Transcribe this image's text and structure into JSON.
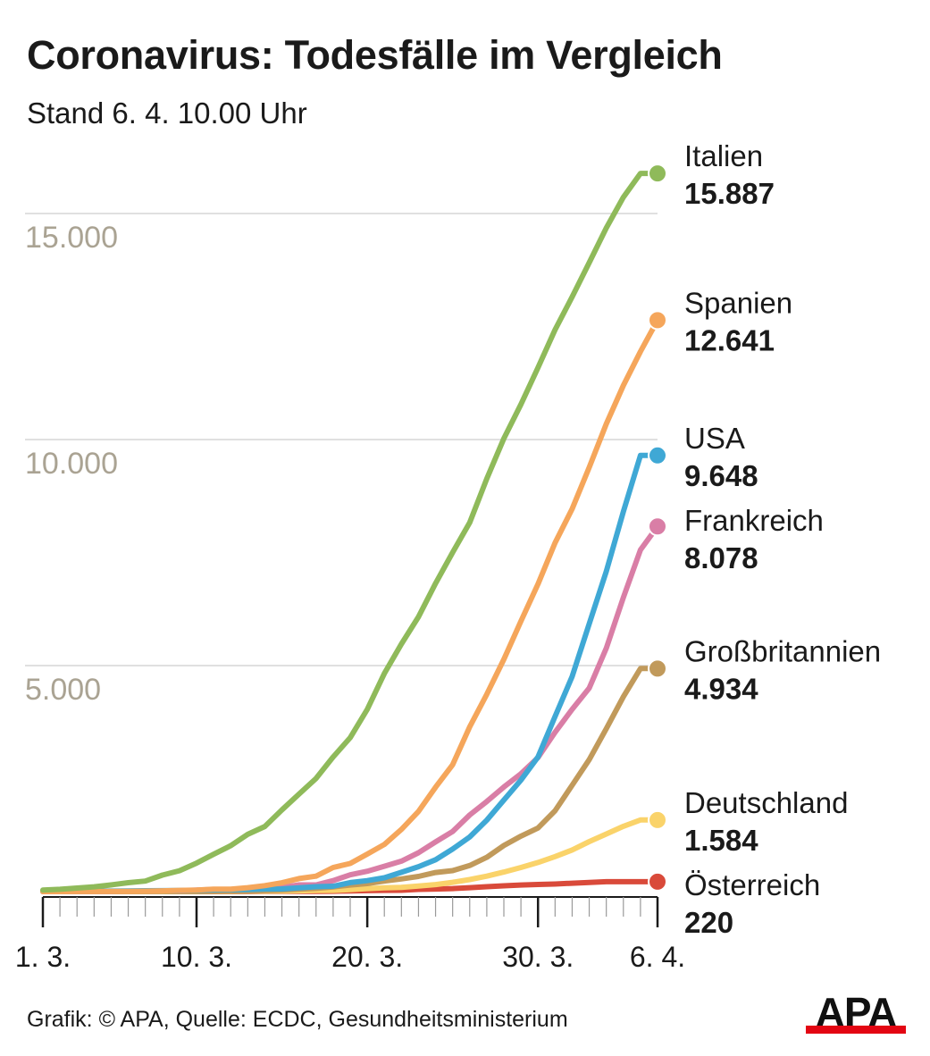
{
  "header": {
    "title": "Coronavirus: Todesfälle im Vergleich",
    "subtitle": "Stand 6. 4. 10.00 Uhr"
  },
  "footer": {
    "source": "Grafik: © APA, Quelle: ECDC, Gesundheitsministerium",
    "logo": "APA"
  },
  "colors": {
    "grid": "#d6d6d6",
    "ytick": "#aaa393",
    "axis": "#1a1a1a",
    "logo_bar": "#e30613"
  },
  "chart_data": {
    "type": "line",
    "title": "Coronavirus: Todesfälle im Vergleich",
    "subtitle": "Stand 6. 4. 10.00 Uhr",
    "ylim": [
      0,
      16000
    ],
    "yticks": [
      5000,
      10000,
      15000
    ],
    "ytick_labels": [
      "5.000",
      "10.000",
      "15.000"
    ],
    "grid": true,
    "x_days": [
      "1.3.",
      "2.3.",
      "3.3.",
      "4.3.",
      "5.3.",
      "6.3.",
      "7.3.",
      "8.3.",
      "9.3.",
      "10.3.",
      "11.3.",
      "12.3.",
      "13.3.",
      "14.3.",
      "15.3.",
      "16.3.",
      "17.3.",
      "18.3.",
      "19.3.",
      "20.3.",
      "21.3.",
      "22.3.",
      "23.3.",
      "24.3.",
      "25.3.",
      "26.3.",
      "27.3.",
      "28.3.",
      "29.3.",
      "30.3.",
      "31.3.",
      "1.4.",
      "2.4.",
      "3.4.",
      "4.4.",
      "5.4.",
      "6.4."
    ],
    "x_major_labels": [
      "1. 3.",
      "10. 3.",
      "20. 3.",
      "30. 3.",
      "6. 4."
    ],
    "x_major_index": [
      0,
      9,
      19,
      29,
      36
    ],
    "legend_placement": "right, at line ends",
    "series": [
      {
        "name": "Italien",
        "value_label": "15.887",
        "color": "#8fba5a",
        "values": [
          34,
          52,
          79,
          107,
          148,
          197,
          233,
          366,
          463,
          631,
          827,
          1016,
          1266,
          1441,
          1809,
          2158,
          2503,
          2978,
          3405,
          4032,
          4825,
          5476,
          6077,
          6820,
          7503,
          8165,
          9134,
          10023,
          10779,
          11591,
          12428,
          13155,
          13915,
          14681,
          15362,
          15887,
          15887
        ]
      },
      {
        "name": "Spanien",
        "value_label": "12.641",
        "color": "#f5a65b",
        "values": [
          0,
          0,
          1,
          2,
          3,
          5,
          10,
          17,
          28,
          35,
          54,
          55,
          86,
          133,
          195,
          289,
          342,
          533,
          623,
          830,
          1043,
          1375,
          1772,
          2311,
          2808,
          3647,
          4365,
          5138,
          5982,
          6803,
          7716,
          8464,
          9387,
          10348,
          11198,
          11947,
          12641
        ]
      },
      {
        "name": "USA",
        "value_label": "9.648",
        "color": "#3fa8d5",
        "values": [
          1,
          6,
          9,
          11,
          12,
          15,
          19,
          22,
          26,
          30,
          38,
          41,
          48,
          57,
          60,
          85,
          108,
          118,
          200,
          244,
          307,
          427,
          552,
          706,
          942,
          1209,
          1581,
          2026,
          2467,
          2978,
          3873,
          4757,
          5926,
          7087,
          8407,
          9648,
          9648
        ]
      },
      {
        "name": "Frankreich",
        "value_label": "8.078",
        "color": "#d97ea6",
        "values": [
          2,
          2,
          3,
          4,
          6,
          9,
          11,
          19,
          19,
          33,
          48,
          48,
          79,
          91,
          91,
          149,
          149,
          244,
          372,
          450,
          562,
          674,
          860,
          1100,
          1331,
          1696,
          1995,
          2314,
          2606,
          2964,
          3523,
          4032,
          4503,
          5387,
          6507,
          7560,
          8078
        ]
      },
      {
        "name": "Großbritannien",
        "value_label": "4.934",
        "color": "#c19a5b",
        "values": [
          0,
          0,
          0,
          0,
          1,
          2,
          2,
          3,
          5,
          6,
          8,
          8,
          10,
          21,
          35,
          55,
          71,
          104,
          144,
          177,
          233,
          281,
          335,
          422,
          465,
          578,
          759,
          1019,
          1228,
          1408,
          1789,
          2352,
          2921,
          3605,
          4313,
          4934,
          4934
        ]
      },
      {
        "name": "Deutschland",
        "value_label": "1.584",
        "color": "#fad36a",
        "values": [
          0,
          0,
          0,
          0,
          0,
          0,
          0,
          0,
          2,
          2,
          3,
          3,
          7,
          9,
          11,
          17,
          24,
          28,
          44,
          67,
          84,
          94,
          123,
          157,
          206,
          267,
          342,
          433,
          533,
          645,
          775,
          920,
          1107,
          1275,
          1444,
          1584,
          1584
        ]
      },
      {
        "name": "Österreich",
        "value_label": "220",
        "color": "#d94a3a",
        "values": [
          0,
          0,
          0,
          0,
          0,
          0,
          0,
          0,
          0,
          0,
          0,
          1,
          1,
          3,
          4,
          6,
          6,
          8,
          16,
          21,
          28,
          30,
          49,
          58,
          68,
          86,
          108,
          128,
          146,
          158,
          168,
          186,
          204,
          220,
          220,
          220,
          220
        ]
      }
    ]
  }
}
